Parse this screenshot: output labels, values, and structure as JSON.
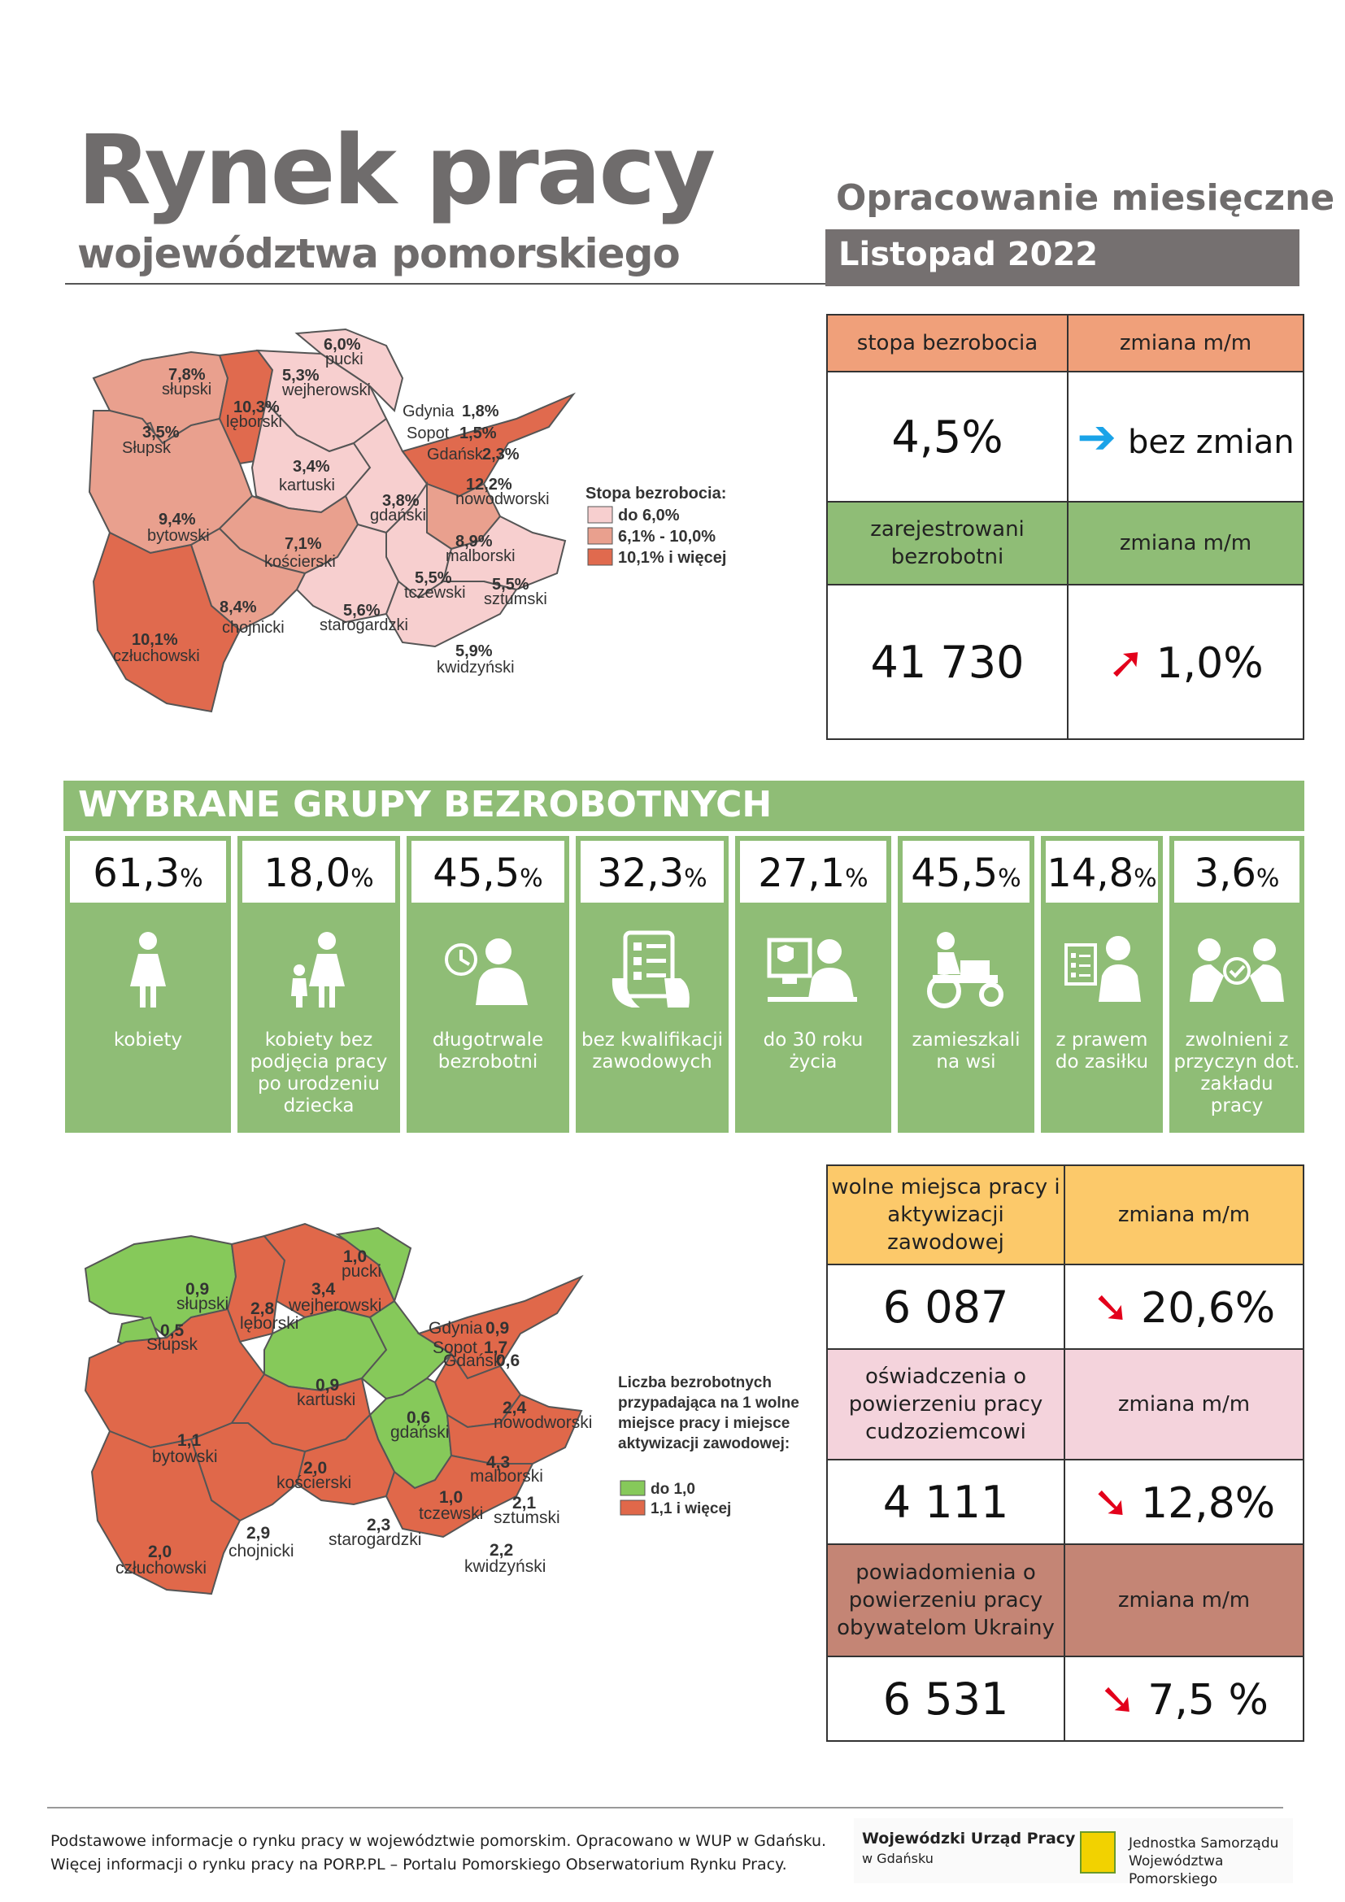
{
  "header": {
    "title": "Rynek pracy",
    "subtitle": "województwa pomorskiego",
    "publication_type": "Opracowanie miesięczne",
    "period": "Listopad 2022"
  },
  "unemployment": {
    "rate_label": "stopa bezrobocia",
    "change_label": "zmiana m/m",
    "rate_value": "4,5%",
    "rate_change": "bez zmian",
    "registered_label": "zarejestrowani bezrobotni",
    "registered_change_label": "zmiana m/m",
    "registered_value": "41 730",
    "registered_change": "1,0%",
    "colors": {
      "header_orange": "#f0a07a",
      "header_green": "#8fbd76"
    }
  },
  "map1": {
    "legend_title": "Stopa bezrobocia:",
    "legend": [
      "do 6,0%",
      "6,1% - 10,0%",
      "10,1% i więcej"
    ],
    "legend_colors": [
      "#f7cfcf",
      "#e9a08e",
      "#e06a4e"
    ],
    "districts": [
      {
        "name": "pucki",
        "value": "6,0%"
      },
      {
        "name": "słupski",
        "value": "7,8%"
      },
      {
        "name": "wejherowski",
        "value": "5,3%"
      },
      {
        "name": "lęborski",
        "value": "10,3%"
      },
      {
        "name": "Słupsk",
        "value": "3,5%"
      },
      {
        "name": "Gdynia",
        "value": "1,8%"
      },
      {
        "name": "Sopot",
        "value": "1,5%"
      },
      {
        "name": "Gdańsk",
        "value": "2,3%"
      },
      {
        "name": "kartuski",
        "value": "3,4%"
      },
      {
        "name": "nowodworski",
        "value": "12,2%"
      },
      {
        "name": "bytowski",
        "value": "9,4%"
      },
      {
        "name": "gdański",
        "value": "3,8%"
      },
      {
        "name": "kościerski",
        "value": "7,1%"
      },
      {
        "name": "malborski",
        "value": "8,9%"
      },
      {
        "name": "tczewski",
        "value": "5,5%"
      },
      {
        "name": "sztumski",
        "value": "5,5%"
      },
      {
        "name": "chojnicki",
        "value": "8,4%"
      },
      {
        "name": "starogardzki",
        "value": "5,6%"
      },
      {
        "name": "człuchowski",
        "value": "10,1%"
      },
      {
        "name": "kwidzyński",
        "value": "5,9%"
      }
    ]
  },
  "groups": {
    "title": "WYBRANE GRUPY BEZROBOTNYCH",
    "items": [
      {
        "value": "61,3",
        "unit": "%",
        "label": "kobiety",
        "icon": "woman-icon"
      },
      {
        "value": "18,0",
        "unit": "%",
        "label": "kobiety bez podjęcia pracy po urodzeniu dziecka",
        "icon": "mother-child-icon"
      },
      {
        "value": "45,5",
        "unit": "%",
        "label": "długotrwale bezrobotni",
        "icon": "clock-person-icon"
      },
      {
        "value": "32,3",
        "unit": "%",
        "label": "bez kwalifikacji zawodowych",
        "icon": "tablet-checklist-icon"
      },
      {
        "value": "27,1",
        "unit": "%",
        "label": "do 30 roku życia",
        "icon": "young-person-computer-icon"
      },
      {
        "value": "45,5",
        "unit": "%",
        "label": "zamieszkali na wsi",
        "icon": "tractor-icon"
      },
      {
        "value": "14,8",
        "unit": "%",
        "label": "z prawem do zasiłku",
        "icon": "benefit-document-icon"
      },
      {
        "value": "3,6",
        "unit": "%",
        "label": "zwolnieni z przyczyn dot. zakładu pracy",
        "icon": "handshake-people-icon"
      }
    ]
  },
  "map2": {
    "legend_title": "Liczba bezrobotnych przypadająca na 1 wolne miejsce pracy i miejsce aktywizacji zawodowej:",
    "legend": [
      "do 1,0",
      "1,1 i więcej"
    ],
    "legend_colors": [
      "#86c95a",
      "#e0684a"
    ],
    "districts": [
      {
        "name": "pucki",
        "value": "1,0"
      },
      {
        "name": "słupski",
        "value": "0,9"
      },
      {
        "name": "wejherowski",
        "value": "3,4"
      },
      {
        "name": "lęborski",
        "value": "2,8"
      },
      {
        "name": "Słupsk",
        "value": "0,5"
      },
      {
        "name": "Gdynia",
        "value": "0,9"
      },
      {
        "name": "Sopot",
        "value": "1,7"
      },
      {
        "name": "Gdańsk",
        "value": "0,6"
      },
      {
        "name": "kartuski",
        "value": "0,9"
      },
      {
        "name": "nowodworski",
        "value": "2,4"
      },
      {
        "name": "bytowski",
        "value": "1,1"
      },
      {
        "name": "gdański",
        "value": "0,6"
      },
      {
        "name": "kościerski",
        "value": "2,0"
      },
      {
        "name": "malborski",
        "value": "4,3"
      },
      {
        "name": "tczewski",
        "value": "1,0"
      },
      {
        "name": "sztumski",
        "value": "2,1"
      },
      {
        "name": "chojnicki",
        "value": "2,9"
      },
      {
        "name": "starogardzki",
        "value": "2,3"
      },
      {
        "name": "człuchowski",
        "value": "2,0"
      },
      {
        "name": "kwidzyński",
        "value": "2,2"
      }
    ]
  },
  "offers": {
    "vacancies_label": "wolne miejsca pracy i aktywizacji zawodowej",
    "vacancies_change_label": "zmiana m/m",
    "vacancies_value": "6 087",
    "vacancies_change": "20,6%",
    "declarations_label": "oświadczenia o powierzeniu pracy cudzoziemcowi",
    "declarations_change_label": "zmiana m/m",
    "declarations_value": "4 111",
    "declarations_change": "12,8%",
    "ukraine_label": "powiadomienia o powierzeniu pracy obywatelom Ukrainy",
    "ukraine_change_label": "zmiana m/m",
    "ukraine_value": "6 531",
    "ukraine_change": "7,5 %",
    "colors": {
      "vacancies": "#fcc96a",
      "declarations": "#f4d3dc",
      "ukraine": "#c48575"
    }
  },
  "footer": {
    "line1": "Podstawowe informacje o rynku pracy w województwie pomorskim. Opracowano w WUP w Gdańsku.",
    "line2": "Więcej informacji o rynku pracy na PORP.PL – Portalu Pomorskiego Obserwatorium Rynku Pracy.",
    "wup_name": "Wojewódzki Urząd Pracy",
    "wup_city": "w Gdańsku",
    "js_line1": "Jednostka Samorządu",
    "js_line2": "Województwa Pomorskiego"
  }
}
